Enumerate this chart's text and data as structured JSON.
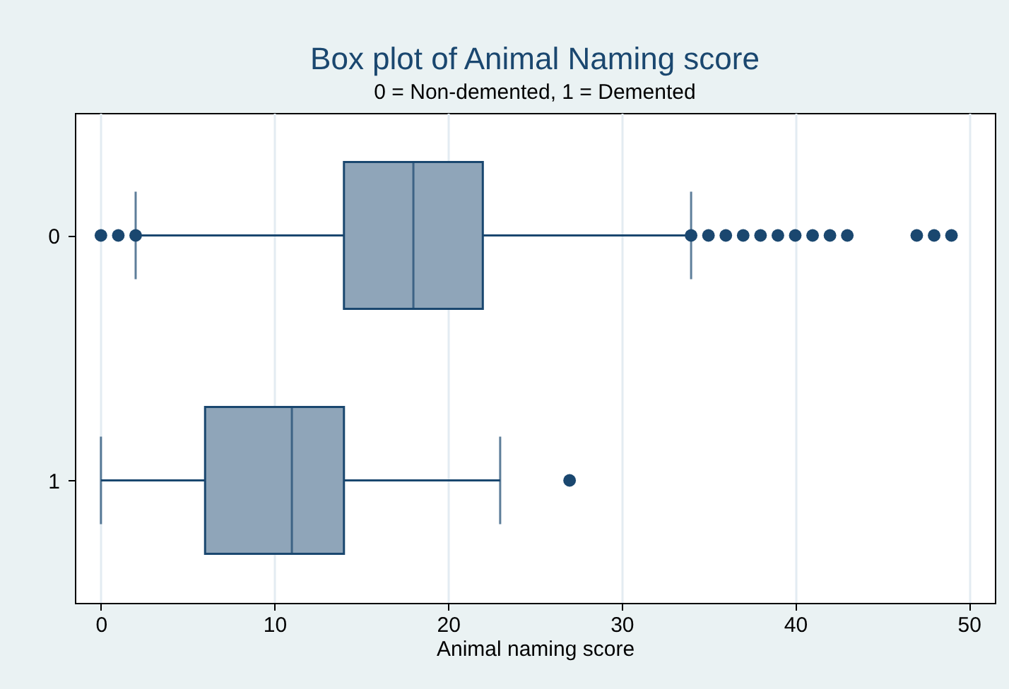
{
  "chart_data": {
    "type": "box",
    "title": "Box plot of Animal Naming score",
    "subtitle": "0 = Non-demented, 1 = Demented",
    "xlabel": "Animal naming score",
    "orientation": "horizontal",
    "categories": [
      "0",
      "1"
    ],
    "boxes": [
      {
        "low": 2,
        "q1": 14,
        "median": 18,
        "q3": 22,
        "high": 34,
        "outliers": [
          0,
          1,
          2,
          34,
          35,
          36,
          37,
          38,
          39,
          40,
          41,
          42,
          43,
          47,
          48,
          49
        ]
      },
      {
        "low": 0,
        "q1": 6,
        "median": 11,
        "q3": 14,
        "high": 23,
        "outliers": [
          27
        ]
      }
    ],
    "color": "#8fa5b9",
    "xlim": [
      -1.5,
      51.5
    ],
    "xticks": [
      0,
      10,
      20,
      30,
      40,
      50
    ],
    "grid": "x"
  }
}
